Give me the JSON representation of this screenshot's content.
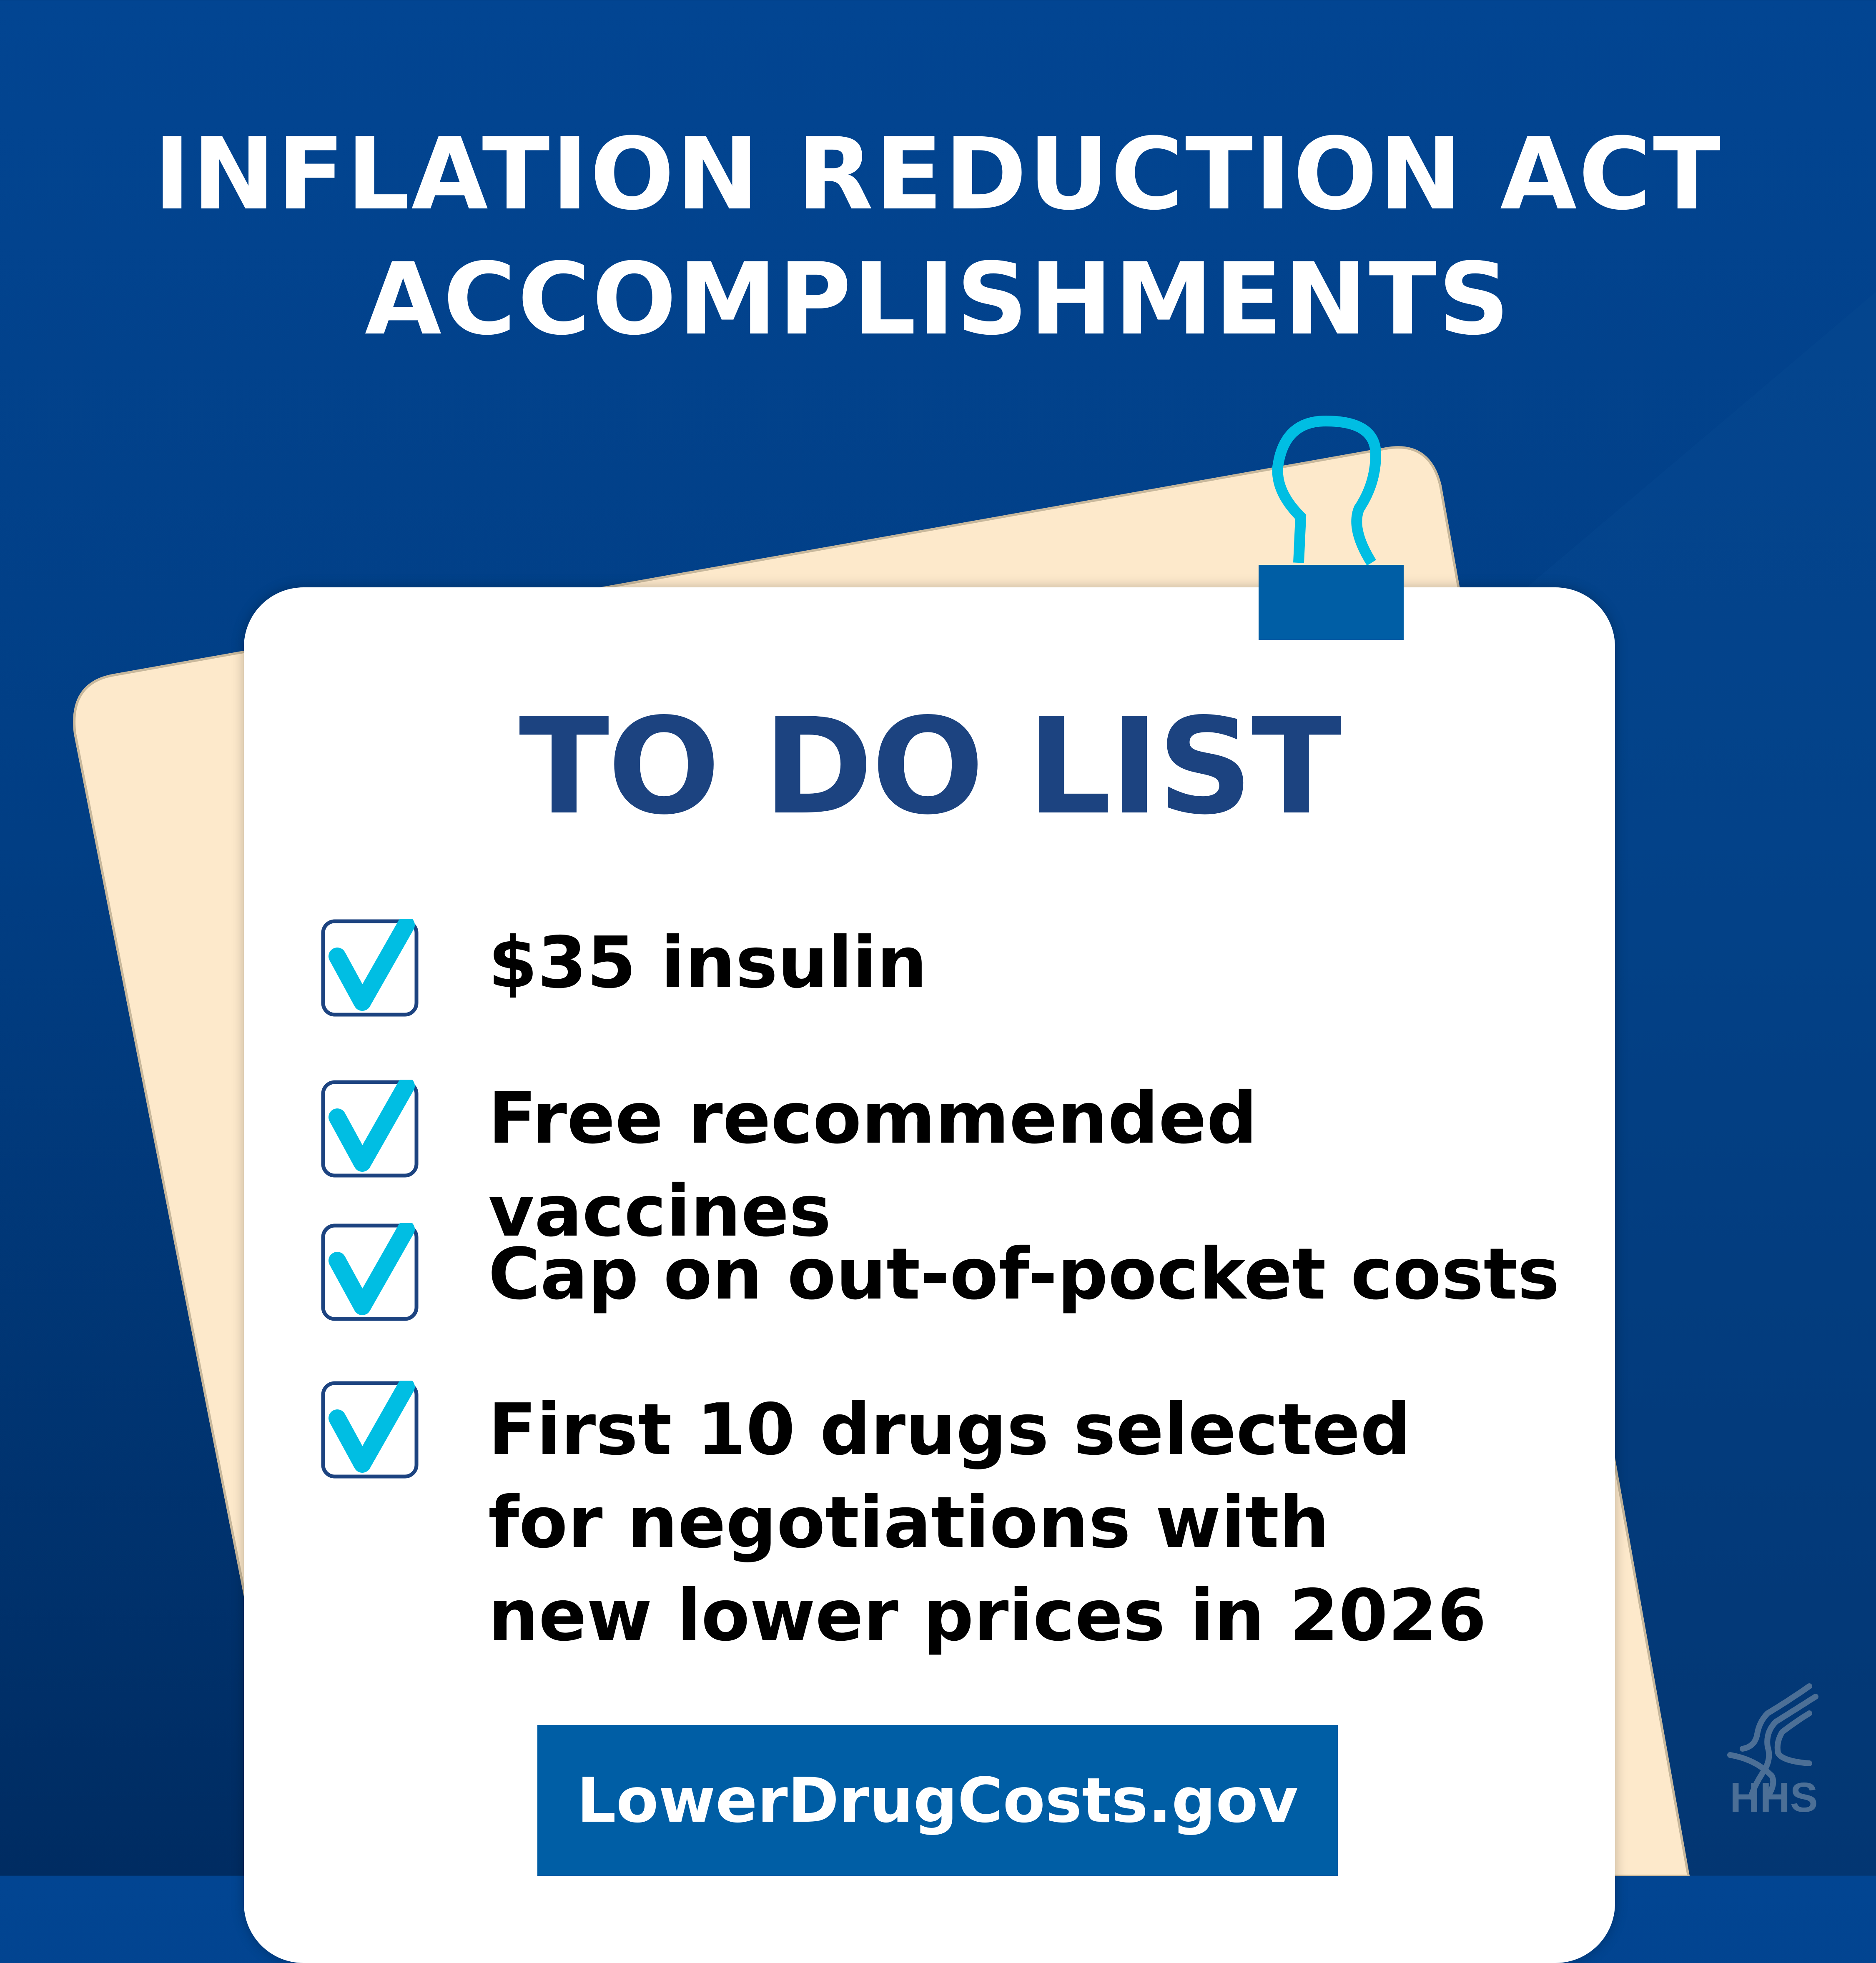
{
  "header": {
    "title_line1": "INFLATION REDUCTION ACT",
    "title_line2": "ACCOMPLISHMENTS"
  },
  "card": {
    "heading": "TO DO LIST",
    "items": [
      {
        "label": "$35 insulin",
        "checked": true
      },
      {
        "label": "Free recommended vaccines",
        "checked": true
      },
      {
        "label": "Cap on out-of-pocket costs",
        "checked": true
      },
      {
        "label": "First 10 drugs selected for negotiations with new lower prices in 2026",
        "checked": true
      }
    ],
    "link_label": "LowerDrugCosts.gov"
  },
  "logo": {
    "text": "HHS",
    "icon": "hhs-eagle-icon"
  },
  "colors": {
    "background": "#013e84",
    "paper": "#fde9cb",
    "heading": "#1c4380",
    "check": "#00bee3",
    "checkbox_border": "#1c4380",
    "button": "#005ea5",
    "clip": "#005ea5",
    "logo": "#4c6f96"
  }
}
